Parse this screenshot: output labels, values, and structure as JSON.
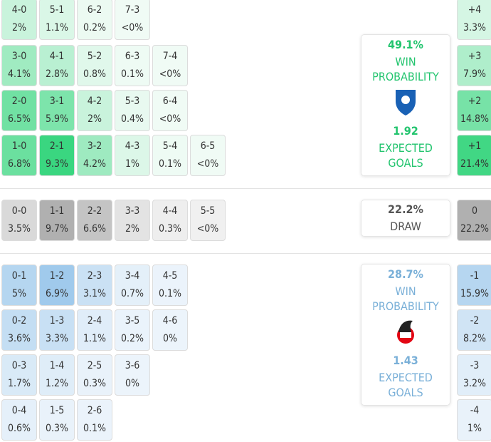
{
  "home": {
    "rows": [
      [
        {
          "score": "4-0",
          "prob": "2%"
        },
        {
          "score": "5-1",
          "prob": "1.1%"
        },
        {
          "score": "6-2",
          "prob": "0.2%"
        },
        {
          "score": "7-3",
          "prob": "<0%"
        }
      ],
      [
        {
          "score": "3-0",
          "prob": "4.1%"
        },
        {
          "score": "4-1",
          "prob": "2.8%"
        },
        {
          "score": "5-2",
          "prob": "0.8%"
        },
        {
          "score": "6-3",
          "prob": "0.1%"
        },
        {
          "score": "7-4",
          "prob": "<0%"
        }
      ],
      [
        {
          "score": "2-0",
          "prob": "6.5%"
        },
        {
          "score": "3-1",
          "prob": "5.9%"
        },
        {
          "score": "4-2",
          "prob": "2%"
        },
        {
          "score": "5-3",
          "prob": "0.4%"
        },
        {
          "score": "6-4",
          "prob": "<0%"
        }
      ],
      [
        {
          "score": "1-0",
          "prob": "6.8%"
        },
        {
          "score": "2-1",
          "prob": "9.3%"
        },
        {
          "score": "3-2",
          "prob": "4.2%"
        },
        {
          "score": "4-3",
          "prob": "1%"
        },
        {
          "score": "5-4",
          "prob": "0.1%"
        },
        {
          "score": "6-5",
          "prob": "<0%"
        }
      ]
    ],
    "margins": [
      {
        "label": "+4",
        "prob": "3.3%"
      },
      {
        "label": "+3",
        "prob": "7.9%"
      },
      {
        "label": "+2",
        "prob": "14.8%"
      },
      {
        "label": "+1",
        "prob": "21.4%"
      }
    ],
    "card": {
      "prob": "49.1%",
      "label": "WIN PROBABILITY",
      "xg": "1.92",
      "xg_label": "EXPECTED GOALS"
    }
  },
  "draw": {
    "rows": [
      [
        {
          "score": "0-0",
          "prob": "3.5%"
        },
        {
          "score": "1-1",
          "prob": "9.7%"
        },
        {
          "score": "2-2",
          "prob": "6.6%"
        },
        {
          "score": "3-3",
          "prob": "2%"
        },
        {
          "score": "4-4",
          "prob": "0.3%"
        },
        {
          "score": "5-5",
          "prob": "<0%"
        }
      ]
    ],
    "margins": [
      {
        "label": "0",
        "prob": "22.2%"
      }
    ],
    "card": {
      "prob": "22.2%",
      "label": "DRAW"
    }
  },
  "away": {
    "rows": [
      [
        {
          "score": "0-1",
          "prob": "5%"
        },
        {
          "score": "1-2",
          "prob": "6.9%"
        },
        {
          "score": "2-3",
          "prob": "3.1%"
        },
        {
          "score": "3-4",
          "prob": "0.7%"
        },
        {
          "score": "4-5",
          "prob": "0.1%"
        }
      ],
      [
        {
          "score": "0-2",
          "prob": "3.6%"
        },
        {
          "score": "1-3",
          "prob": "3.3%"
        },
        {
          "score": "2-4",
          "prob": "1.1%"
        },
        {
          "score": "3-5",
          "prob": "0.2%"
        },
        {
          "score": "4-6",
          "prob": "0%"
        }
      ],
      [
        {
          "score": "0-3",
          "prob": "1.7%"
        },
        {
          "score": "1-4",
          "prob": "1.2%"
        },
        {
          "score": "2-5",
          "prob": "0.3%"
        },
        {
          "score": "3-6",
          "prob": "0%"
        }
      ],
      [
        {
          "score": "0-4",
          "prob": "0.6%"
        },
        {
          "score": "1-5",
          "prob": "0.3%"
        },
        {
          "score": "2-6",
          "prob": "0.1%"
        }
      ]
    ],
    "margins": [
      {
        "label": "-1",
        "prob": "15.9%"
      },
      {
        "label": "-2",
        "prob": "8.2%"
      },
      {
        "label": "-3",
        "prob": "3.2%"
      },
      {
        "label": "-4",
        "prob": "1%"
      }
    ],
    "card": {
      "prob": "28.7%",
      "label": "WIN PROBABILITY",
      "xg": "1.43",
      "xg_label": "EXPECTED GOALS"
    }
  }
}
